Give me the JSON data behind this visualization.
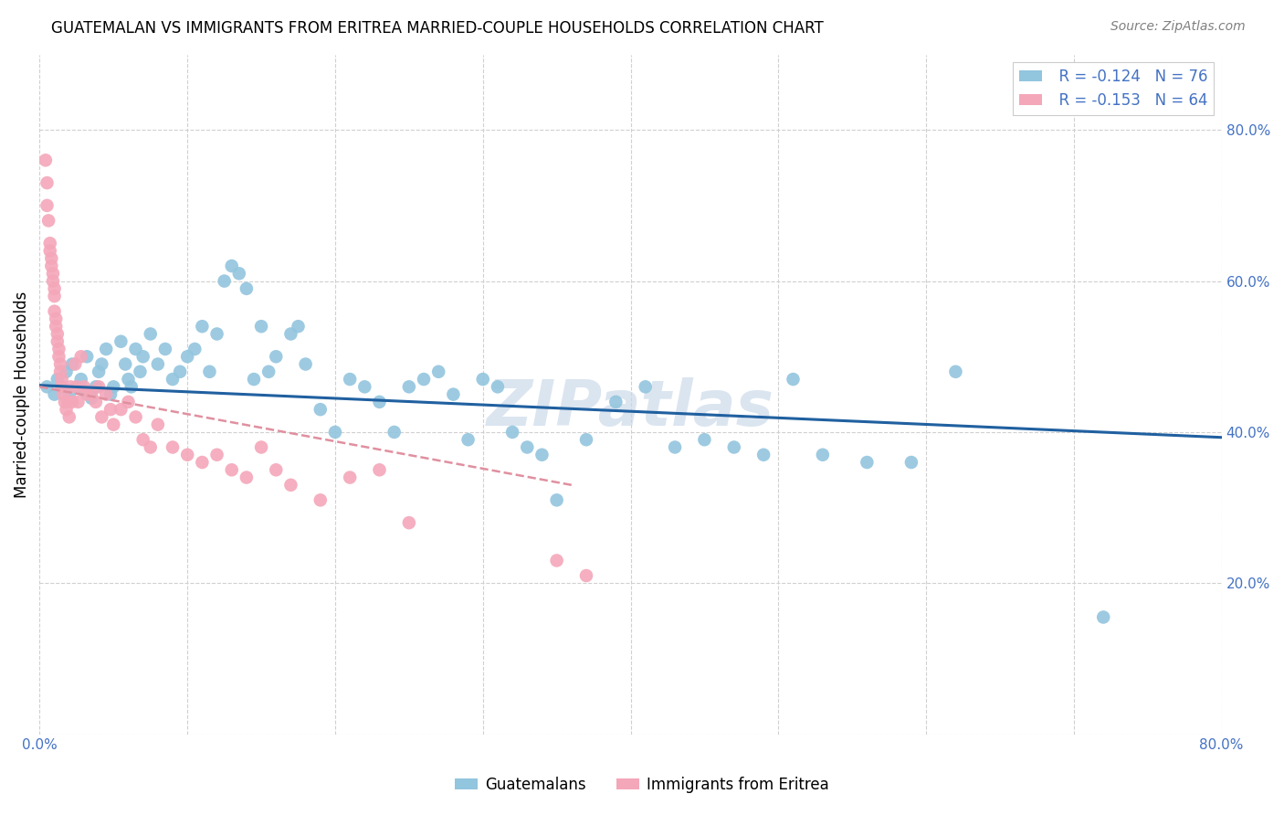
{
  "title": "GUATEMALAN VS IMMIGRANTS FROM ERITREA MARRIED-COUPLE HOUSEHOLDS CORRELATION CHART",
  "source": "Source: ZipAtlas.com",
  "ylabel": "Married-couple Households",
  "xlim": [
    0.0,
    0.8
  ],
  "ylim": [
    0.0,
    0.9
  ],
  "x_ticks": [
    0.0,
    0.1,
    0.2,
    0.3,
    0.4,
    0.5,
    0.6,
    0.7,
    0.8
  ],
  "x_tick_labels": [
    "0.0%",
    "",
    "",
    "",
    "",
    "",
    "",
    "",
    "80.0%"
  ],
  "y_ticks": [
    0.0,
    0.2,
    0.4,
    0.6,
    0.8
  ],
  "y_tick_labels": [
    "",
    "20.0%",
    "40.0%",
    "60.0%",
    "80.0%"
  ],
  "legend_r1": "R = -0.124   N = 76",
  "legend_r2": "R = -0.153   N = 64",
  "legend_label1": "Guatemalans",
  "legend_label2": "Immigrants from Eritrea",
  "blue_color": "#92c5de",
  "pink_color": "#f4a7b9",
  "blue_line_color": "#2060a0",
  "pink_line_color": "#e090a0",
  "watermark": "ZIPatlas",
  "blue_scatter_x": [
    0.005,
    0.01,
    0.012,
    0.015,
    0.018,
    0.02,
    0.022,
    0.025,
    0.028,
    0.03,
    0.032,
    0.035,
    0.038,
    0.04,
    0.042,
    0.045,
    0.048,
    0.05,
    0.055,
    0.058,
    0.06,
    0.062,
    0.065,
    0.068,
    0.07,
    0.075,
    0.08,
    0.085,
    0.09,
    0.095,
    0.1,
    0.105,
    0.11,
    0.115,
    0.12,
    0.125,
    0.13,
    0.135,
    0.14,
    0.145,
    0.15,
    0.155,
    0.16,
    0.17,
    0.175,
    0.18,
    0.19,
    0.2,
    0.21,
    0.22,
    0.23,
    0.24,
    0.25,
    0.26,
    0.27,
    0.28,
    0.29,
    0.3,
    0.31,
    0.32,
    0.33,
    0.34,
    0.35,
    0.37,
    0.39,
    0.41,
    0.43,
    0.45,
    0.47,
    0.49,
    0.51,
    0.53,
    0.56,
    0.59,
    0.62,
    0.72
  ],
  "blue_scatter_y": [
    0.46,
    0.45,
    0.47,
    0.46,
    0.48,
    0.45,
    0.49,
    0.46,
    0.47,
    0.455,
    0.5,
    0.445,
    0.46,
    0.48,
    0.49,
    0.51,
    0.45,
    0.46,
    0.52,
    0.49,
    0.47,
    0.46,
    0.51,
    0.48,
    0.5,
    0.53,
    0.49,
    0.51,
    0.47,
    0.48,
    0.5,
    0.51,
    0.54,
    0.48,
    0.53,
    0.6,
    0.62,
    0.61,
    0.59,
    0.47,
    0.54,
    0.48,
    0.5,
    0.53,
    0.54,
    0.49,
    0.43,
    0.4,
    0.47,
    0.46,
    0.44,
    0.4,
    0.46,
    0.47,
    0.48,
    0.45,
    0.39,
    0.47,
    0.46,
    0.4,
    0.38,
    0.37,
    0.31,
    0.39,
    0.44,
    0.46,
    0.38,
    0.39,
    0.38,
    0.37,
    0.47,
    0.37,
    0.36,
    0.36,
    0.48,
    0.155
  ],
  "pink_scatter_x": [
    0.004,
    0.005,
    0.005,
    0.006,
    0.007,
    0.007,
    0.008,
    0.008,
    0.009,
    0.009,
    0.01,
    0.01,
    0.01,
    0.011,
    0.011,
    0.012,
    0.012,
    0.013,
    0.013,
    0.014,
    0.014,
    0.015,
    0.015,
    0.016,
    0.017,
    0.018,
    0.019,
    0.02,
    0.021,
    0.022,
    0.024,
    0.025,
    0.026,
    0.028,
    0.03,
    0.032,
    0.035,
    0.038,
    0.04,
    0.042,
    0.045,
    0.048,
    0.05,
    0.055,
    0.06,
    0.065,
    0.07,
    0.075,
    0.08,
    0.09,
    0.1,
    0.11,
    0.12,
    0.13,
    0.14,
    0.15,
    0.16,
    0.17,
    0.19,
    0.21,
    0.23,
    0.25,
    0.35,
    0.37
  ],
  "pink_scatter_y": [
    0.76,
    0.73,
    0.7,
    0.68,
    0.65,
    0.64,
    0.63,
    0.62,
    0.61,
    0.6,
    0.59,
    0.58,
    0.56,
    0.55,
    0.54,
    0.53,
    0.52,
    0.51,
    0.5,
    0.49,
    0.48,
    0.47,
    0.46,
    0.45,
    0.44,
    0.43,
    0.44,
    0.42,
    0.46,
    0.44,
    0.49,
    0.46,
    0.44,
    0.5,
    0.46,
    0.45,
    0.45,
    0.44,
    0.46,
    0.42,
    0.45,
    0.43,
    0.41,
    0.43,
    0.44,
    0.42,
    0.39,
    0.38,
    0.41,
    0.38,
    0.37,
    0.36,
    0.37,
    0.35,
    0.34,
    0.38,
    0.35,
    0.33,
    0.31,
    0.34,
    0.35,
    0.28,
    0.23,
    0.21
  ],
  "blue_trend_x": [
    0.0,
    0.8
  ],
  "blue_trend_y": [
    0.462,
    0.393
  ],
  "pink_trend_x": [
    0.0,
    0.36
  ],
  "pink_trend_y": [
    0.46,
    0.33
  ],
  "title_fontsize": 12,
  "tick_fontsize": 11,
  "axis_label_fontsize": 12,
  "legend_fontsize": 12,
  "watermark_color": "#c8d8e8",
  "grid_color": "#d0d0d0",
  "tick_color": "#4472c4"
}
